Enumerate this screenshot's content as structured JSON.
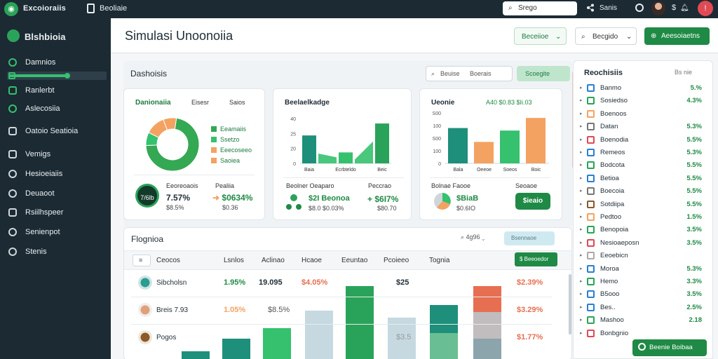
{
  "topbar": {
    "brand": "Excoioraiis",
    "doc_label": "Beoliaie",
    "search_label": "Srego",
    "share_label": "Sanis",
    "currency": "$",
    "notification": "!"
  },
  "sidebar": {
    "title": "Blshbioia",
    "items": [
      {
        "label": "Damnios"
      },
      {
        "label": "Ranlerbt"
      },
      {
        "label": "Aslecosiia"
      },
      {
        "label": "Oatoio Seatioia"
      },
      {
        "label": "Vemigs"
      },
      {
        "label": "Hesioeiaiis"
      },
      {
        "label": "Deuaoot"
      },
      {
        "label": "Rsiilhspeer"
      },
      {
        "label": "Senienpot"
      },
      {
        "label": "Stenis"
      }
    ]
  },
  "header": {
    "page_title": "Simulasi Unoonoiia",
    "section_btn": "Beceiioe",
    "filter_btn": "Becgido",
    "primary_btn": "Aeesoiaetns"
  },
  "dashboard": {
    "title": "Dashoisis",
    "search": "Beuise",
    "search2": "Boerais",
    "btn": "Scoegite",
    "cards": [
      {
        "title": "Danionaiia",
        "sub1": "Eisesr",
        "sub2": "Saios",
        "legend": [
          "Eeamaiis",
          "Ssetzo",
          "Eeecoseeo",
          "Saoiea"
        ],
        "stat_circle": "7/6lb",
        "stat_label1": "Eeoreoaois",
        "stat_big1": "7.57%",
        "stat_small1": "$8.5%",
        "stat_label2": "Pealiia",
        "stat_big2": "$0634%",
        "stat_small2": "$0.36"
      },
      {
        "title": "Beelaelkadge",
        "y_ticks": [
          "40",
          "25",
          "20",
          "0"
        ],
        "x_ticks": [
          "Baia",
          "Ecrbteldo",
          "Beic"
        ],
        "stat_label1": "Beolner Oeaparo",
        "stat_big1": "$2I Beonoa",
        "stat_small1": "$8.0 $0.03%",
        "stat_label2": "Peccrao",
        "stat_big2": "$6I7%",
        "stat_small2": "$80.70"
      },
      {
        "title": "Ueonie",
        "sub1": "A40 $0.83 $Ii.03",
        "y_ticks": [
          "S00",
          "100",
          "S00",
          "100",
          "0"
        ],
        "x_ticks": [
          "Bala",
          "Oeeoe",
          "Soeos",
          "Boic"
        ],
        "stat_label1": "Bolnae Faooe",
        "stat_big1": "$BiaB",
        "stat_small1": "$0.6IO",
        "stat_label2": "Seoaoe",
        "btn": "$ieaio"
      }
    ]
  },
  "chart_data": [
    {
      "type": "pie",
      "title": "Danionaiia",
      "categories": [
        "Eeamaiis",
        "Ssetzo",
        "Eeecoseeo",
        "Saoiea"
      ],
      "values": [
        72,
        8,
        12,
        8
      ],
      "colors": [
        "#34a853",
        "#35c16e",
        "#f4a261",
        "#f4a261"
      ]
    },
    {
      "type": "bar",
      "title": "Beelaelkadge",
      "categories": [
        "Baia",
        "",
        "Ecrbteldo",
        "",
        "Beic"
      ],
      "values": [
        28,
        0,
        11,
        0,
        40
      ],
      "ylim": [
        0,
        45
      ]
    },
    {
      "type": "bar",
      "title": "Ueonie",
      "categories": [
        "Bala",
        "Oeeoe",
        "Soeos",
        "Boic"
      ],
      "values": [
        280,
        170,
        260,
        360
      ],
      "ylim": [
        0,
        400
      ]
    }
  ],
  "table": {
    "title": "Flognioa",
    "tools": "4g96",
    "btn": "Bsennaoe",
    "headers": [
      "Ceocos",
      "Lsnlos",
      "Aclinao",
      "Hcaoe",
      "Eeuntao",
      "Pcoieeo",
      "Tognia"
    ],
    "green_btn": "$ Beeoedor",
    "rows": [
      {
        "name": "Sibcholsn",
        "v1": "1.95%",
        "v2": "19.095",
        "v3": "$4.05%",
        "v4": "$25",
        "v5": "$2.39%"
      },
      {
        "name": "Breis 7.93",
        "v1": "1.05%",
        "v2": "$8.5%",
        "v3": "",
        "v4": "",
        "v5": "$3.29%"
      },
      {
        "name": "Pogos",
        "v1": "",
        "v2": "",
        "v3": "",
        "v4": "$3.5",
        "v5": "$1.77%"
      }
    ]
  },
  "right_panel": {
    "title": "Reochisiis",
    "ctrl": "Bs nie",
    "items": [
      {
        "name": "Banmo",
        "pct": "5.%",
        "color": "#2a7fd4"
      },
      {
        "name": "Sosiedso",
        "pct": "4.3%",
        "color": "#2aa35a"
      },
      {
        "name": "Boenoos",
        "pct": "",
        "color": "#f4a261"
      },
      {
        "name": "Datan",
        "pct": "5.3%",
        "color": "#777777"
      },
      {
        "name": "Boenodia",
        "pct": "5.5%",
        "color": "#e04a55"
      },
      {
        "name": "Remeos",
        "pct": "5.3%",
        "color": "#2a7fd4"
      },
      {
        "name": "Bodcota",
        "pct": "5.5%",
        "color": "#2aa35a"
      },
      {
        "name": "Betioa",
        "pct": "5.5%",
        "color": "#2a7fd4"
      },
      {
        "name": "Boecoia",
        "pct": "5.5%",
        "color": "#777777"
      },
      {
        "name": "Sotdiipa",
        "pct": "5.5%",
        "color": "#8a5a2b"
      },
      {
        "name": "Pedtoo",
        "pct": "1.5%",
        "color": "#f4a261"
      },
      {
        "name": "Benopoia",
        "pct": "3.5%",
        "color": "#2aa35a"
      },
      {
        "name": "Nesioaeposn",
        "pct": "3.5%",
        "color": "#e04a55"
      },
      {
        "name": "Eeoebicn",
        "pct": "",
        "color": "#aaaaaa"
      },
      {
        "name": "Moroa",
        "pct": "5.3%",
        "color": "#2a7fd4"
      },
      {
        "name": "Hemo",
        "pct": "3.3%",
        "color": "#2aa35a"
      },
      {
        "name": "B5ooo",
        "pct": "3.5%",
        "color": "#2a7fd4"
      },
      {
        "name": "Bes..",
        "pct": "2.5%",
        "color": "#2a7fd4"
      },
      {
        "name": "Mashoo",
        "pct": "2.18",
        "color": "#2aa35a"
      },
      {
        "name": "Bonbgnio",
        "pct": "",
        "color": "#e04a55"
      }
    ],
    "cta": "Beenie Boibaa"
  }
}
